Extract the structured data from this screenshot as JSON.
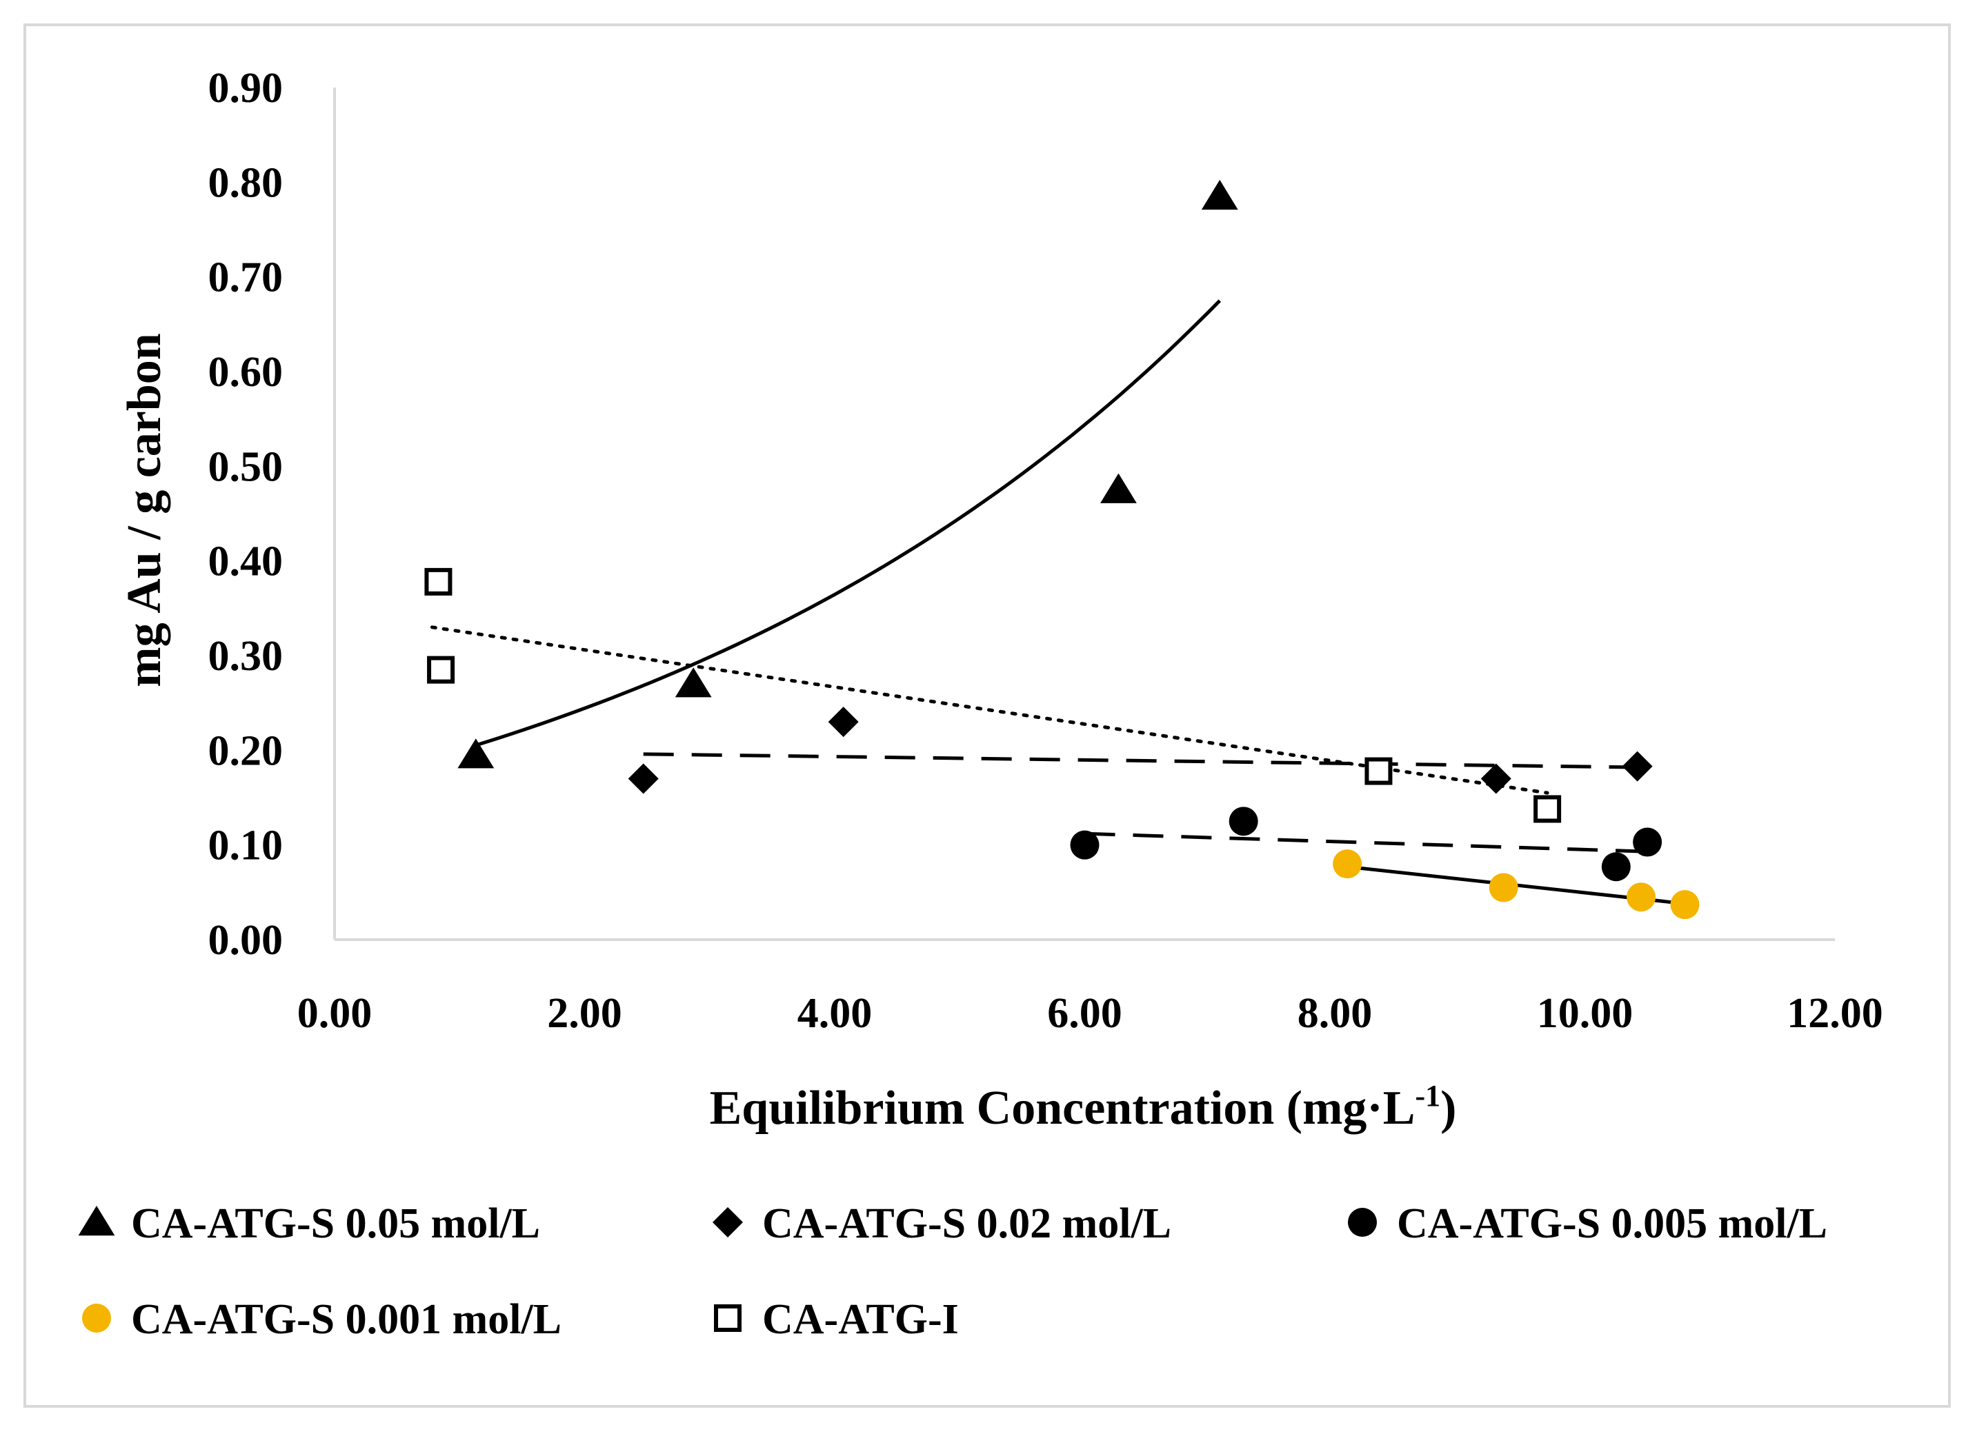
{
  "chart_data": {
    "type": "scatter",
    "title": "",
    "xlabel": "Equilibrium Concentration (mg·L",
    "xlabel_superscript": "-1",
    "xlabel_suffix": ")",
    "ylabel": "mg Au / g carbon",
    "xlim": [
      0,
      12
    ],
    "ylim": [
      0,
      0.9
    ],
    "x_ticks": [
      "0.00",
      "2.00",
      "4.00",
      "6.00",
      "8.00",
      "10.00",
      "12.00"
    ],
    "y_ticks": [
      "0.00",
      "0.10",
      "0.20",
      "0.30",
      "0.40",
      "0.50",
      "0.60",
      "0.70",
      "0.80",
      "0.90"
    ],
    "grid": false,
    "legend_position": "bottom",
    "series": [
      {
        "name": "CA-ATG-S 0.05 mol/L",
        "marker": "triangle",
        "color": "#000000",
        "points": [
          [
            1.13,
            0.195
          ],
          [
            2.87,
            0.27
          ],
          [
            6.27,
            0.475
          ],
          [
            7.08,
            0.785
          ]
        ],
        "trendline": {
          "style": "solid",
          "kind": "exponential",
          "a": 0.1638,
          "b": 0.2,
          "x_range": [
            1.13,
            7.08
          ]
        }
      },
      {
        "name": "CA-ATG-S 0.02 mol/L",
        "marker": "diamond",
        "color": "#000000",
        "points": [
          [
            2.47,
            0.17
          ],
          [
            4.07,
            0.23
          ],
          [
            9.29,
            0.17
          ],
          [
            10.42,
            0.183
          ]
        ],
        "trendline": {
          "style": "dashed",
          "kind": "linear",
          "y_start": 0.196,
          "y_end": 0.182,
          "x_range": [
            2.47,
            10.42
          ]
        }
      },
      {
        "name": "CA-ATG-S 0.005 mol/L",
        "marker": "circle",
        "color": "#000000",
        "points": [
          [
            6.0,
            0.1
          ],
          [
            7.27,
            0.125
          ],
          [
            10.25,
            0.077
          ],
          [
            10.5,
            0.103
          ]
        ],
        "trendline": {
          "style": "dashed",
          "kind": "linear",
          "y_start": 0.112,
          "y_end": 0.093,
          "x_range": [
            6.0,
            10.5
          ]
        }
      },
      {
        "name": "CA-ATG-S 0.001 mol/L",
        "marker": "circle",
        "color": "#F5B400",
        "points": [
          [
            8.1,
            0.08
          ],
          [
            9.35,
            0.055
          ],
          [
            10.45,
            0.045
          ],
          [
            10.8,
            0.037
          ]
        ],
        "trendline": {
          "style": "solid",
          "color": "#000000",
          "kind": "linear",
          "y_start": 0.077,
          "y_end": 0.038,
          "x_range": [
            8.1,
            10.8
          ]
        }
      },
      {
        "name": "CA-ATG-I",
        "marker": "square-open",
        "color": "#000000",
        "points": [
          [
            0.83,
            0.378
          ],
          [
            0.85,
            0.285
          ],
          [
            8.35,
            0.178
          ],
          [
            9.7,
            0.138
          ]
        ],
        "trendline": {
          "style": "dotted",
          "kind": "linear",
          "y_start": 0.33,
          "y_end": 0.155,
          "x_range": [
            0.78,
            9.7
          ]
        }
      }
    ]
  }
}
